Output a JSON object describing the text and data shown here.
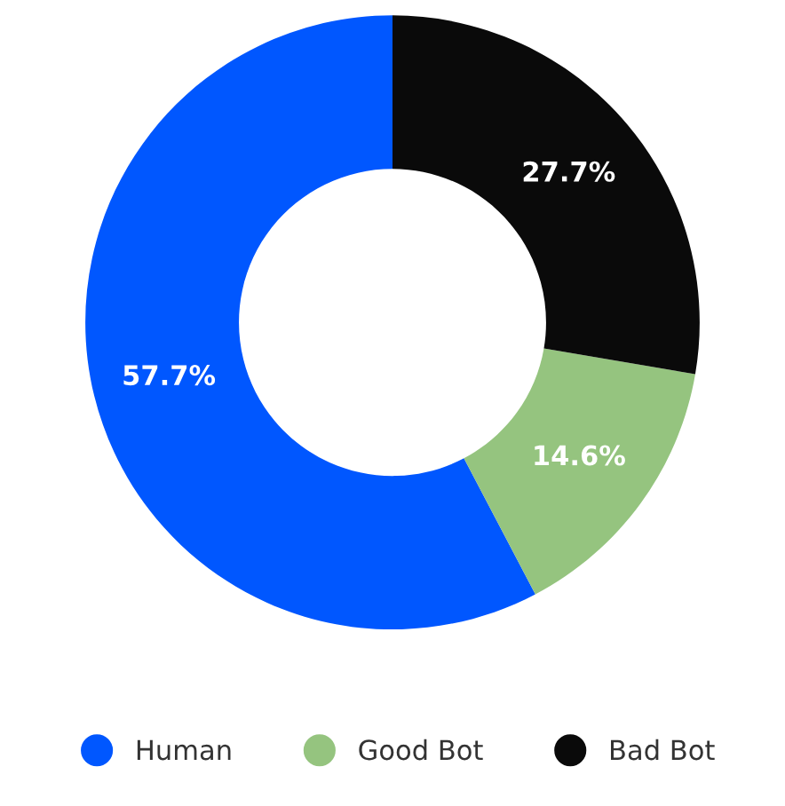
{
  "chart_data": {
    "type": "donut",
    "categories": [
      "Human",
      "Good Bot",
      "Bad Bot"
    ],
    "values": [
      57.7,
      14.6,
      27.7
    ],
    "colors": [
      "#0057ff",
      "#95c47f",
      "#0a0a0a"
    ],
    "value_labels": [
      "57.7%",
      "14.6%",
      "27.7%"
    ],
    "legend": "bottom"
  }
}
